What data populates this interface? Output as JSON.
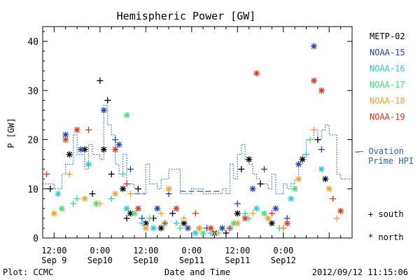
{
  "chart_data": {
    "type": "scatter",
    "title": "Hemispheric Power [GW]",
    "xlabel": "Date and Time",
    "ylabel": "P [GW]",
    "ylim": [
      0,
      43
    ],
    "yticks": [
      0,
      10,
      20,
      30,
      40
    ],
    "xlim": [
      "2012-09-09T09:00",
      "2012-09-12T18:00"
    ],
    "xticks": [
      {
        "x": "2012-09-09T12:00",
        "top": "12:00",
        "bottom": "Sep 9"
      },
      {
        "x": "2012-09-10T00:00",
        "top": "0:00",
        "bottom": "Sep10"
      },
      {
        "x": "2012-09-10T12:00",
        "top": "12:00",
        "bottom": "Sep10"
      },
      {
        "x": "2012-09-11T00:00",
        "top": "0:00",
        "bottom": "Sep11"
      },
      {
        "x": "2012-09-11T12:00",
        "top": "12:00",
        "bottom": "Sep11"
      },
      {
        "x": "2012-09-12T00:00",
        "top": "0:00",
        "bottom": "Sep12"
      }
    ],
    "footer_left": "Plot: CCMC",
    "footer_right": "2012/09/12 11:15:06",
    "legend": {
      "placement": "right",
      "satellites": [
        {
          "name": "METP-02",
          "color": "#000000"
        },
        {
          "name": "NOAA-15",
          "color": "#1f3fbf"
        },
        {
          "name": "NOAA-16",
          "color": "#22c8e0"
        },
        {
          "name": "NOAA-17",
          "color": "#3ee070"
        },
        {
          "name": "NOAA-18",
          "color": "#f5a020"
        },
        {
          "name": "NOAA-19",
          "color": "#e83018"
        }
      ],
      "ovation_label_line1": "– Ovation",
      "ovation_label_line2": "Prime HPI",
      "ovation_color": "#2a5fbf",
      "south_label": "+ south",
      "north_label": "* north"
    },
    "ovation_series": {
      "name": "Ovation Prime HPI",
      "x": [
        "2012-09-09T09:00",
        "2012-09-09T12:00",
        "2012-09-09T14:00",
        "2012-09-09T15:00",
        "2012-09-09T17:00",
        "2012-09-09T18:00",
        "2012-09-09T20:00",
        "2012-09-09T21:00",
        "2012-09-09T22:00",
        "2012-09-10T00:00",
        "2012-09-10T01:00",
        "2012-09-10T02:00",
        "2012-09-10T03:00",
        "2012-09-10T04:00",
        "2012-09-10T05:00",
        "2012-09-10T06:00",
        "2012-09-10T07:00",
        "2012-09-10T09:00",
        "2012-09-10T10:00",
        "2012-09-10T12:00",
        "2012-09-10T13:00",
        "2012-09-10T15:00",
        "2012-09-10T16:00",
        "2012-09-10T18:00",
        "2012-09-10T21:00",
        "2012-09-11T00:00",
        "2012-09-11T03:00",
        "2012-09-11T06:00",
        "2012-09-11T08:00",
        "2012-09-11T09:00",
        "2012-09-11T10:00",
        "2012-09-11T11:00",
        "2012-09-11T12:00",
        "2012-09-11T13:00",
        "2012-09-11T14:00",
        "2012-09-11T15:00",
        "2012-09-11T16:00",
        "2012-09-11T17:00",
        "2012-09-11T18:00",
        "2012-09-11T20:00",
        "2012-09-11T21:00",
        "2012-09-11T22:00",
        "2012-09-12T00:00",
        "2012-09-12T01:00",
        "2012-09-12T02:00",
        "2012-09-12T03:00",
        "2012-09-12T04:00",
        "2012-09-12T05:00",
        "2012-09-12T06:00",
        "2012-09-12T08:00",
        "2012-09-12T09:00",
        "2012-09-12T10:00",
        "2012-09-12T11:00",
        "2012-09-12T12:00",
        "2012-09-12T14:00",
        "2012-09-12T15:00",
        "2012-09-12T16:00",
        "2012-09-12T17:00",
        "2012-09-12T18:00"
      ],
      "y": [
        11,
        10,
        13,
        15,
        21,
        17,
        14,
        19,
        17,
        16,
        27,
        23,
        21,
        15,
        13,
        17,
        11,
        10,
        9,
        15,
        11,
        10,
        12,
        14,
        9,
        10,
        9,
        9,
        10,
        9,
        15,
        12,
        17,
        19,
        16,
        15,
        13,
        12,
        11,
        10,
        13,
        9,
        11,
        10,
        11,
        12,
        15,
        17,
        20,
        22,
        20,
        22,
        23,
        21,
        13,
        12,
        12,
        12,
        12
      ]
    },
    "points": [
      {
        "sat": "METP-02",
        "hem": "south",
        "x": "2012-09-09T11:00",
        "y": 10
      },
      {
        "sat": "METP-02",
        "hem": "north",
        "x": "2012-09-09T16:00",
        "y": 17
      },
      {
        "sat": "METP-02",
        "hem": "north",
        "x": "2012-09-09T20:00",
        "y": 18
      },
      {
        "sat": "METP-02",
        "hem": "south",
        "x": "2012-09-09T22:00",
        "y": 9
      },
      {
        "sat": "METP-02",
        "hem": "south",
        "x": "2012-09-10T00:00",
        "y": 32
      },
      {
        "sat": "METP-02",
        "hem": "south",
        "x": "2012-09-10T02:00",
        "y": 28
      },
      {
        "sat": "METP-02",
        "hem": "north",
        "x": "2012-09-10T01:00",
        "y": 18
      },
      {
        "sat": "METP-02",
        "hem": "south",
        "x": "2012-09-10T03:00",
        "y": 13
      },
      {
        "sat": "METP-02",
        "hem": "north",
        "x": "2012-09-10T06:00",
        "y": 10
      },
      {
        "sat": "METP-02",
        "hem": "south",
        "x": "2012-09-10T07:00",
        "y": 4
      },
      {
        "sat": "METP-02",
        "hem": "north",
        "x": "2012-09-10T08:00",
        "y": 5
      },
      {
        "sat": "METP-02",
        "hem": "south",
        "x": "2012-09-10T10:00",
        "y": 10
      },
      {
        "sat": "METP-02",
        "hem": "north",
        "x": "2012-09-10T12:00",
        "y": 3
      },
      {
        "sat": "METP-02",
        "hem": "south",
        "x": "2012-09-10T14:00",
        "y": 4
      },
      {
        "sat": "METP-02",
        "hem": "north",
        "x": "2012-09-10T16:00",
        "y": 2
      },
      {
        "sat": "METP-02",
        "hem": "south",
        "x": "2012-09-10T19:00",
        "y": 5
      },
      {
        "sat": "METP-02",
        "hem": "north",
        "x": "2012-09-10T22:00",
        "y": 3
      },
      {
        "sat": "METP-02",
        "hem": "south",
        "x": "2012-09-11T02:00",
        "y": 2
      },
      {
        "sat": "METP-02",
        "hem": "north",
        "x": "2012-09-11T06:00",
        "y": 1
      },
      {
        "sat": "METP-02",
        "hem": "south",
        "x": "2012-09-11T09:00",
        "y": 1
      },
      {
        "sat": "METP-02",
        "hem": "north",
        "x": "2012-09-11T12:00",
        "y": 5
      },
      {
        "sat": "METP-02",
        "hem": "south",
        "x": "2012-09-11T13:00",
        "y": 14
      },
      {
        "sat": "METP-02",
        "hem": "north",
        "x": "2012-09-11T15:00",
        "y": 16
      },
      {
        "sat": "METP-02",
        "hem": "south",
        "x": "2012-09-11T18:00",
        "y": 11
      },
      {
        "sat": "METP-02",
        "hem": "north",
        "x": "2012-09-11T21:00",
        "y": 3
      },
      {
        "sat": "METP-02",
        "hem": "south",
        "x": "2012-09-12T00:00",
        "y": 2
      },
      {
        "sat": "METP-02",
        "hem": "north",
        "x": "2012-09-12T05:00",
        "y": 16
      },
      {
        "sat": "METP-02",
        "hem": "south",
        "x": "2012-09-12T09:00",
        "y": 20
      },
      {
        "sat": "METP-02",
        "hem": "north",
        "x": "2012-09-12T11:00",
        "y": 12
      },
      {
        "sat": "NOAA-15",
        "hem": "north",
        "x": "2012-09-09T15:00",
        "y": 21
      },
      {
        "sat": "NOAA-15",
        "hem": "north",
        "x": "2012-09-09T19:00",
        "y": 18
      },
      {
        "sat": "NOAA-15",
        "hem": "north",
        "x": "2012-09-10T01:00",
        "y": 26
      },
      {
        "sat": "NOAA-15",
        "hem": "south",
        "x": "2012-09-10T04:00",
        "y": 20
      },
      {
        "sat": "NOAA-15",
        "hem": "north",
        "x": "2012-09-10T05:00",
        "y": 19
      },
      {
        "sat": "NOAA-15",
        "hem": "south",
        "x": "2012-09-10T08:00",
        "y": 14
      },
      {
        "sat": "NOAA-15",
        "hem": "south",
        "x": "2012-09-10T11:00",
        "y": 4
      },
      {
        "sat": "NOAA-15",
        "hem": "north",
        "x": "2012-09-10T15:00",
        "y": 6
      },
      {
        "sat": "NOAA-15",
        "hem": "south",
        "x": "2012-09-10T18:00",
        "y": 9
      },
      {
        "sat": "NOAA-15",
        "hem": "north",
        "x": "2012-09-10T23:00",
        "y": 2
      },
      {
        "sat": "NOAA-15",
        "hem": "south",
        "x": "2012-09-11T04:00",
        "y": 2
      },
      {
        "sat": "NOAA-15",
        "hem": "north",
        "x": "2012-09-11T08:00",
        "y": 2
      },
      {
        "sat": "NOAA-15",
        "hem": "south",
        "x": "2012-09-11T12:00",
        "y": 7
      },
      {
        "sat": "NOAA-15",
        "hem": "north",
        "x": "2012-09-11T16:00",
        "y": 10
      },
      {
        "sat": "NOAA-15",
        "hem": "south",
        "x": "2012-09-11T19:00",
        "y": 14
      },
      {
        "sat": "NOAA-15",
        "hem": "north",
        "x": "2012-09-11T22:00",
        "y": 6
      },
      {
        "sat": "NOAA-15",
        "hem": "south",
        "x": "2012-09-12T01:00",
        "y": 4
      },
      {
        "sat": "NOAA-15",
        "hem": "north",
        "x": "2012-09-12T04:00",
        "y": 15
      },
      {
        "sat": "NOAA-15",
        "hem": "north",
        "x": "2012-09-12T08:00",
        "y": 39
      },
      {
        "sat": "NOAA-15",
        "hem": "south",
        "x": "2012-09-12T10:00",
        "y": 18
      },
      {
        "sat": "NOAA-16",
        "hem": "north",
        "x": "2012-09-09T13:00",
        "y": 9
      },
      {
        "sat": "NOAA-16",
        "hem": "south",
        "x": "2012-09-09T17:00",
        "y": 7
      },
      {
        "sat": "NOAA-16",
        "hem": "north",
        "x": "2012-09-09T21:00",
        "y": 15
      },
      {
        "sat": "NOAA-16",
        "hem": "south",
        "x": "2012-09-10T03:00",
        "y": 8
      },
      {
        "sat": "NOAA-16",
        "hem": "north",
        "x": "2012-09-10T07:00",
        "y": 6
      },
      {
        "sat": "NOAA-16",
        "hem": "south",
        "x": "2012-09-10T11:00",
        "y": 3
      },
      {
        "sat": "NOAA-16",
        "hem": "north",
        "x": "2012-09-10T14:00",
        "y": 2
      },
      {
        "sat": "NOAA-16",
        "hem": "south",
        "x": "2012-09-10T20:00",
        "y": 3
      },
      {
        "sat": "NOAA-16",
        "hem": "north",
        "x": "2012-09-11T01:00",
        "y": 1
      },
      {
        "sat": "NOAA-16",
        "hem": "south",
        "x": "2012-09-11T05:00",
        "y": 1
      },
      {
        "sat": "NOAA-16",
        "hem": "north",
        "x": "2012-09-11T10:00",
        "y": 2
      },
      {
        "sat": "NOAA-16",
        "hem": "south",
        "x": "2012-09-11T14:00",
        "y": 5
      },
      {
        "sat": "NOAA-16",
        "hem": "north",
        "x": "2012-09-11T17:00",
        "y": 6
      },
      {
        "sat": "NOAA-16",
        "hem": "south",
        "x": "2012-09-11T20:00",
        "y": 4
      },
      {
        "sat": "NOAA-16",
        "hem": "north",
        "x": "2012-09-12T02:00",
        "y": 8
      },
      {
        "sat": "NOAA-16",
        "hem": "south",
        "x": "2012-09-12T06:00",
        "y": 17
      },
      {
        "sat": "NOAA-16",
        "hem": "north",
        "x": "2012-09-12T10:00",
        "y": 14
      },
      {
        "sat": "NOAA-17",
        "hem": "north",
        "x": "2012-09-09T14:00",
        "y": 6
      },
      {
        "sat": "NOAA-17",
        "hem": "south",
        "x": "2012-09-09T18:00",
        "y": 8
      },
      {
        "sat": "NOAA-17",
        "hem": "north",
        "x": "2012-09-09T23:00",
        "y": 7
      },
      {
        "sat": "NOAA-17",
        "hem": "north",
        "x": "2012-09-10T07:00",
        "y": 25
      },
      {
        "sat": "NOAA-17",
        "hem": "south",
        "x": "2012-09-10T06:00",
        "y": 13
      },
      {
        "sat": "NOAA-17",
        "hem": "north",
        "x": "2012-09-10T09:00",
        "y": 5
      },
      {
        "sat": "NOAA-17",
        "hem": "south",
        "x": "2012-09-10T13:00",
        "y": 4
      },
      {
        "sat": "NOAA-17",
        "hem": "north",
        "x": "2012-09-10T17:00",
        "y": 3
      },
      {
        "sat": "NOAA-17",
        "hem": "south",
        "x": "2012-09-10T21:00",
        "y": 2
      },
      {
        "sat": "NOAA-17",
        "hem": "north",
        "x": "2012-09-11T03:00",
        "y": 1
      },
      {
        "sat": "NOAA-17",
        "hem": "south",
        "x": "2012-09-11T07:00",
        "y": 1
      },
      {
        "sat": "NOAA-17",
        "hem": "north",
        "x": "2012-09-11T11:00",
        "y": 3
      },
      {
        "sat": "NOAA-17",
        "hem": "south",
        "x": "2012-09-11T15:00",
        "y": 4
      },
      {
        "sat": "NOAA-17",
        "hem": "north",
        "x": "2012-09-11T19:00",
        "y": 5
      },
      {
        "sat": "NOAA-17",
        "hem": "south",
        "x": "2012-09-11T23:00",
        "y": 2
      },
      {
        "sat": "NOAA-17",
        "hem": "north",
        "x": "2012-09-12T03:00",
        "y": 10
      },
      {
        "sat": "NOAA-17",
        "hem": "south",
        "x": "2012-09-12T07:00",
        "y": 20
      },
      {
        "sat": "NOAA-18",
        "hem": "north",
        "x": "2012-09-09T12:00",
        "y": 5
      },
      {
        "sat": "NOAA-18",
        "hem": "south",
        "x": "2012-09-09T16:00",
        "y": 13
      },
      {
        "sat": "NOAA-18",
        "hem": "north",
        "x": "2012-09-09T20:00",
        "y": 8
      },
      {
        "sat": "NOAA-18",
        "hem": "south",
        "x": "2012-09-10T00:00",
        "y": 7
      },
      {
        "sat": "NOAA-18",
        "hem": "north",
        "x": "2012-09-10T04:00",
        "y": 9
      },
      {
        "sat": "NOAA-18",
        "hem": "south",
        "x": "2012-09-10T08:00",
        "y": 9
      },
      {
        "sat": "NOAA-18",
        "hem": "north",
        "x": "2012-09-10T12:00",
        "y": 2
      },
      {
        "sat": "NOAA-18",
        "hem": "south",
        "x": "2012-09-10T16:00",
        "y": 5
      },
      {
        "sat": "NOAA-18",
        "hem": "north",
        "x": "2012-09-10T18:00",
        "y": 10
      },
      {
        "sat": "NOAA-18",
        "hem": "south",
        "x": "2012-09-10T22:00",
        "y": 4
      },
      {
        "sat": "NOAA-18",
        "hem": "north",
        "x": "2012-09-11T02:00",
        "y": 2
      },
      {
        "sat": "NOAA-18",
        "hem": "south",
        "x": "2012-09-11T06:00",
        "y": 1
      },
      {
        "sat": "NOAA-18",
        "hem": "north",
        "x": "2012-09-11T12:00",
        "y": 3
      },
      {
        "sat": "NOAA-18",
        "hem": "south",
        "x": "2012-09-11T16:00",
        "y": 5
      },
      {
        "sat": "NOAA-18",
        "hem": "north",
        "x": "2012-09-11T20:00",
        "y": 4
      },
      {
        "sat": "NOAA-18",
        "hem": "south",
        "x": "2012-09-12T00:00",
        "y": 2
      },
      {
        "sat": "NOAA-18",
        "hem": "north",
        "x": "2012-09-12T04:00",
        "y": 12
      },
      {
        "sat": "NOAA-18",
        "hem": "south",
        "x": "2012-09-12T08:00",
        "y": 22
      },
      {
        "sat": "NOAA-18",
        "hem": "north",
        "x": "2012-09-12T12:00",
        "y": 10
      },
      {
        "sat": "NOAA-18",
        "hem": "south",
        "x": "2012-09-12T14:00",
        "y": 4
      },
      {
        "sat": "NOAA-19",
        "hem": "south",
        "x": "2012-09-09T10:00",
        "y": 13
      },
      {
        "sat": "NOAA-19",
        "hem": "north",
        "x": "2012-09-09T15:00",
        "y": 20
      },
      {
        "sat": "NOAA-19",
        "hem": "north",
        "x": "2012-09-09T18:00",
        "y": 22
      },
      {
        "sat": "NOAA-19",
        "hem": "south",
        "x": "2012-09-09T21:00",
        "y": 22
      },
      {
        "sat": "NOAA-19",
        "hem": "north",
        "x": "2012-09-10T04:00",
        "y": 18
      },
      {
        "sat": "NOAA-19",
        "hem": "south",
        "x": "2012-09-10T07:00",
        "y": 11
      },
      {
        "sat": "NOAA-19",
        "hem": "north",
        "x": "2012-09-10T10:00",
        "y": 6
      },
      {
        "sat": "NOAA-19",
        "hem": "south",
        "x": "2012-09-10T17:00",
        "y": 3
      },
      {
        "sat": "NOAA-19",
        "hem": "north",
        "x": "2012-09-10T20:00",
        "y": 6
      },
      {
        "sat": "NOAA-19",
        "hem": "south",
        "x": "2012-09-11T01:00",
        "y": 5
      },
      {
        "sat": "NOAA-19",
        "hem": "north",
        "x": "2012-09-11T05:00",
        "y": 2
      },
      {
        "sat": "NOAA-19",
        "hem": "south",
        "x": "2012-09-11T10:00",
        "y": 2
      },
      {
        "sat": "NOAA-19",
        "hem": "north",
        "x": "2012-09-11T14:00",
        "y": 4
      },
      {
        "sat": "NOAA-19",
        "hem": "north",
        "x": "2012-09-11T17:00",
        "y": 33.5
      },
      {
        "sat": "NOAA-19",
        "hem": "south",
        "x": "2012-09-11T21:00",
        "y": 5
      },
      {
        "sat": "NOAA-19",
        "hem": "north",
        "x": "2012-09-12T01:00",
        "y": 3
      },
      {
        "sat": "NOAA-19",
        "hem": "north",
        "x": "2012-09-12T08:00",
        "y": 32
      },
      {
        "sat": "NOAA-19",
        "hem": "north",
        "x": "2012-09-12T10:00",
        "y": 30
      },
      {
        "sat": "NOAA-19",
        "hem": "south",
        "x": "2012-09-12T13:00",
        "y": 8
      },
      {
        "sat": "NOAA-19",
        "hem": "north",
        "x": "2012-09-12T15:00",
        "y": 5.5
      }
    ]
  }
}
